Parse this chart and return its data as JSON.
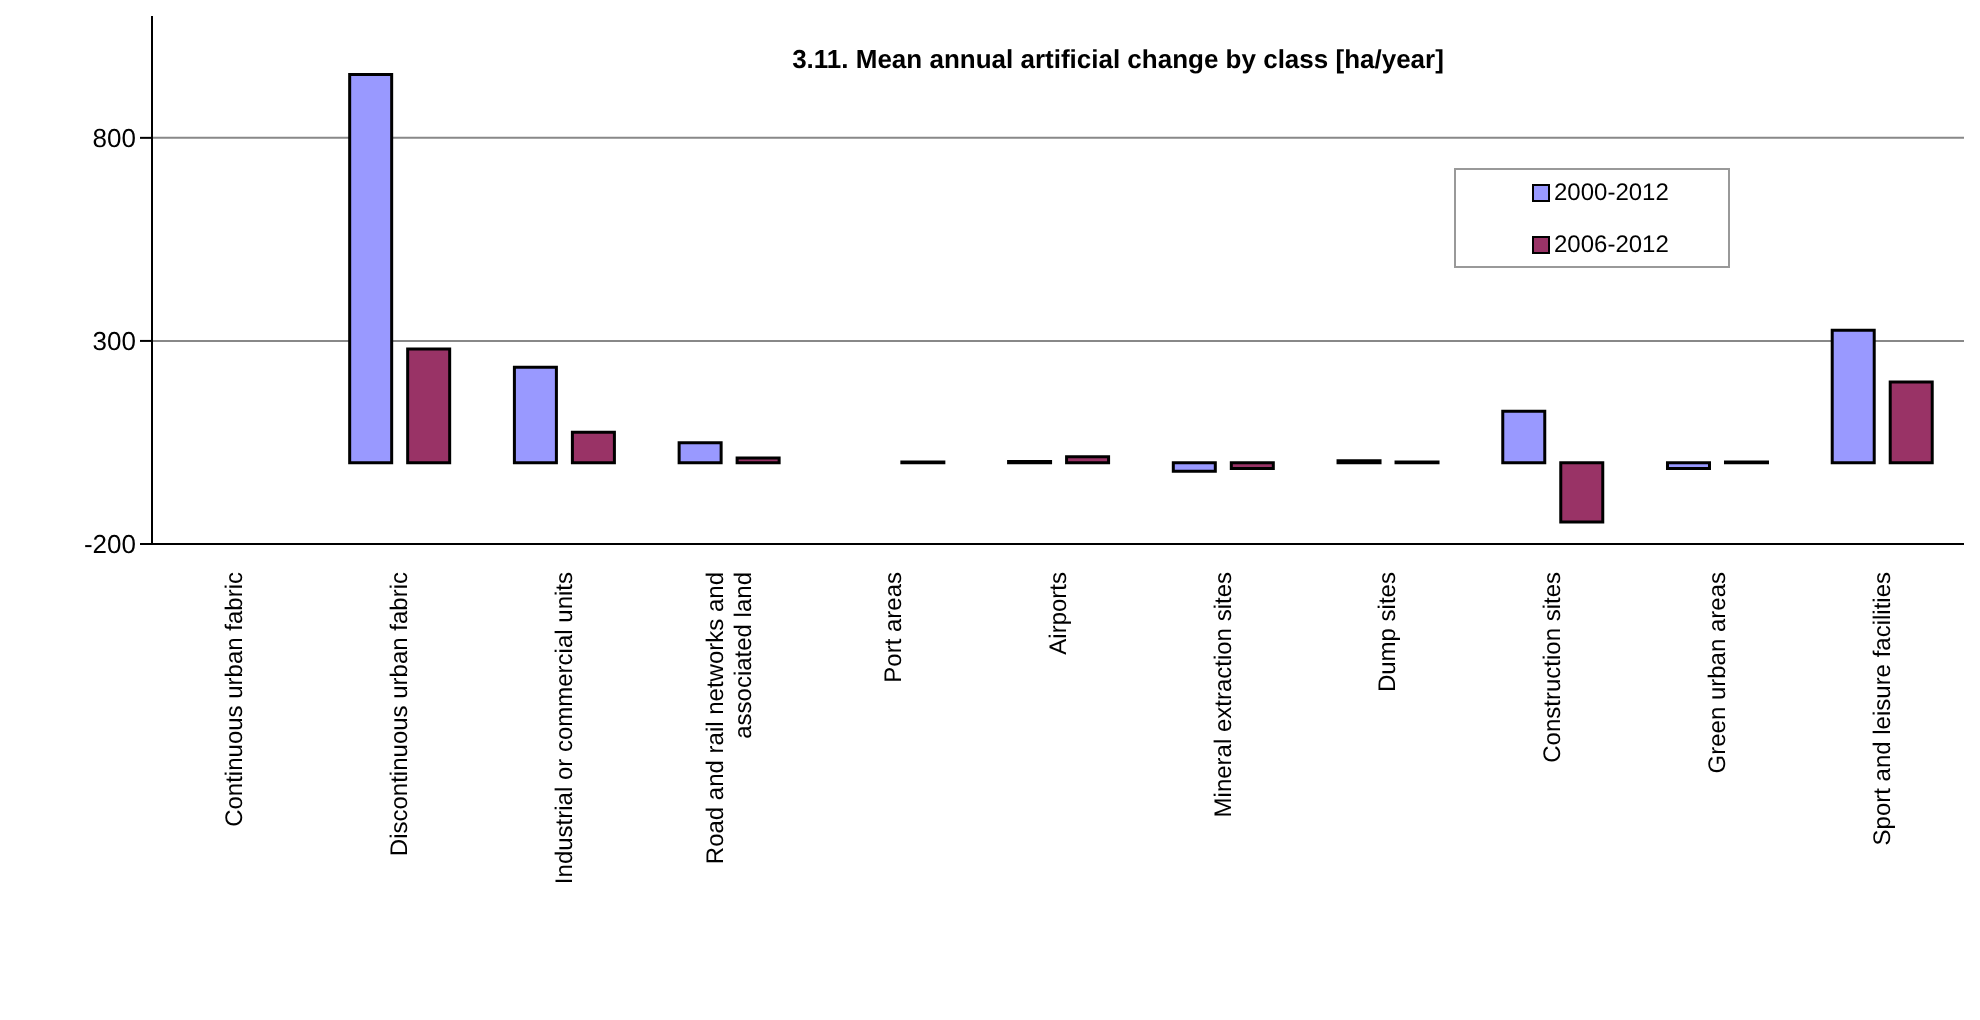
{
  "chart_data": {
    "type": "bar",
    "title": "3.11. Mean annual artificial change by class [ha/year]",
    "categories": [
      "Continuous urban fabric",
      "Discontinuous urban fabric",
      "Industrial or commercial units",
      "Road and rail networks and associated land",
      "Port areas",
      "Airports",
      "Mineral extraction sites",
      "Dump sites",
      "Construction sites",
      "Green urban areas",
      "Sport and leisure facilities"
    ],
    "series": [
      {
        "name": "2000-2012",
        "color": "#9999ff",
        "values": [
          0,
          956,
          235,
          49,
          0,
          3,
          -21,
          5,
          127,
          -14,
          326
        ]
      },
      {
        "name": "2006-2012",
        "color": "#993366",
        "values": [
          0,
          280,
          75,
          12,
          2,
          15,
          -14,
          2,
          -146,
          2,
          199
        ]
      }
    ],
    "ylim": [
      -200,
      1100
    ],
    "yticks": [
      -200,
      300,
      800
    ],
    "grid": "y",
    "legend": "top right"
  }
}
